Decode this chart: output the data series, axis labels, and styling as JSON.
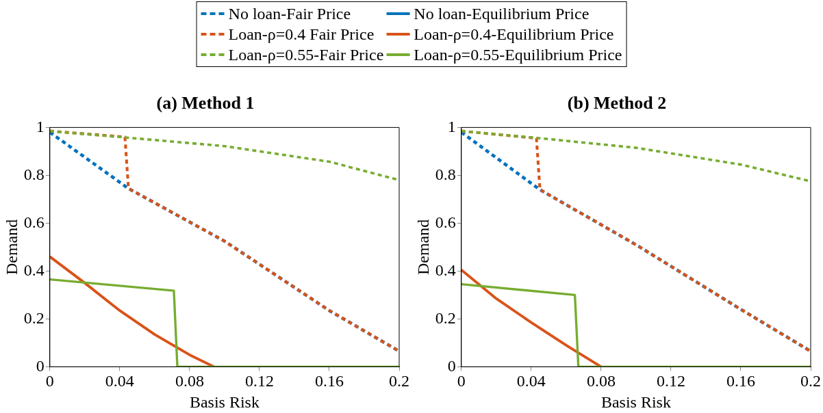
{
  "chart_data": [
    {
      "type": "line",
      "title": "(a) Method 1",
      "xlabel": "Basis Risk",
      "ylabel": "Demand",
      "xlim": [
        0,
        0.2
      ],
      "xticks": [
        0,
        0.04,
        0.08,
        0.12,
        0.16,
        0.2
      ],
      "ylim": [
        0,
        1
      ],
      "yticks": [
        0,
        0.2,
        0.4,
        0.6,
        0.8,
        1
      ],
      "grid": false,
      "legend": "top",
      "marker": "none",
      "series": [
        {
          "name": "No loan-Fair Price",
          "color": "#0072bd",
          "line_style": "dashed",
          "x": [
            0,
            0.045,
            0.1,
            0.16,
            0.2
          ],
          "values": [
            0.98,
            0.745,
            0.525,
            0.235,
            0.065
          ]
        },
        {
          "name": "No loan-Equilibrium Price",
          "color": "#0072bd",
          "line_style": "solid"
        },
        {
          "name": "Loan-ρ=0.4 Fair Price",
          "color": "#d95319",
          "line_style": "dashed",
          "x": [
            0,
            0.043,
            0.045,
            0.1,
            0.16,
            0.2
          ],
          "values": [
            0.985,
            0.96,
            0.745,
            0.525,
            0.235,
            0.065
          ]
        },
        {
          "name": "Loan-ρ=0.4-Equilibrium Price",
          "color": "#d95319",
          "line_style": "solid",
          "x": [
            0,
            0.02,
            0.04,
            0.06,
            0.08,
            0.094
          ],
          "values": [
            0.46,
            0.35,
            0.235,
            0.135,
            0.05,
            0
          ]
        },
        {
          "name": "Loan-ρ=0.55-Fair Price",
          "color": "#77ac30",
          "line_style": "dashed",
          "x": [
            0,
            0.045,
            0.1,
            0.16,
            0.2
          ],
          "values": [
            0.985,
            0.957,
            0.922,
            0.857,
            0.78
          ]
        },
        {
          "name": "Loan-ρ=0.55-Equilibrium Price",
          "color": "#77ac30",
          "line_style": "solid",
          "x": [
            0,
            0.071,
            0.073,
            0.2
          ],
          "values": [
            0.365,
            0.318,
            0,
            0
          ]
        }
      ]
    },
    {
      "type": "line",
      "title": "(b) Method 2",
      "xlabel": "Basis Risk",
      "ylabel": "Demand",
      "xlim": [
        0,
        0.2
      ],
      "xticks": [
        0,
        0.04,
        0.08,
        0.12,
        0.16,
        0.2
      ],
      "ylim": [
        0,
        1
      ],
      "yticks": [
        0,
        0.2,
        0.4,
        0.6,
        0.8,
        1
      ],
      "grid": false,
      "legend": false,
      "marker": "none",
      "series": [
        {
          "color": "#0072bd",
          "line_style": "dashed",
          "x": [
            0,
            0.045,
            0.1,
            0.16,
            0.2
          ],
          "values": [
            0.98,
            0.74,
            0.51,
            0.24,
            0.065
          ]
        },
        {
          "color": "#0072bd",
          "line_style": "solid"
        },
        {
          "color": "#d95319",
          "line_style": "dashed",
          "x": [
            0,
            0.043,
            0.045,
            0.1,
            0.16,
            0.2
          ],
          "values": [
            0.985,
            0.955,
            0.74,
            0.51,
            0.24,
            0.065
          ]
        },
        {
          "color": "#d95319",
          "line_style": "solid",
          "x": [
            0,
            0.02,
            0.04,
            0.06,
            0.08
          ],
          "values": [
            0.405,
            0.285,
            0.185,
            0.09,
            0
          ]
        },
        {
          "color": "#77ac30",
          "line_style": "dashed",
          "x": [
            0,
            0.045,
            0.1,
            0.16,
            0.2
          ],
          "values": [
            0.985,
            0.955,
            0.915,
            0.845,
            0.775
          ]
        },
        {
          "color": "#77ac30",
          "line_style": "solid",
          "x": [
            0,
            0.065,
            0.067,
            0.2
          ],
          "values": [
            0.345,
            0.3,
            0,
            0
          ]
        }
      ]
    }
  ]
}
